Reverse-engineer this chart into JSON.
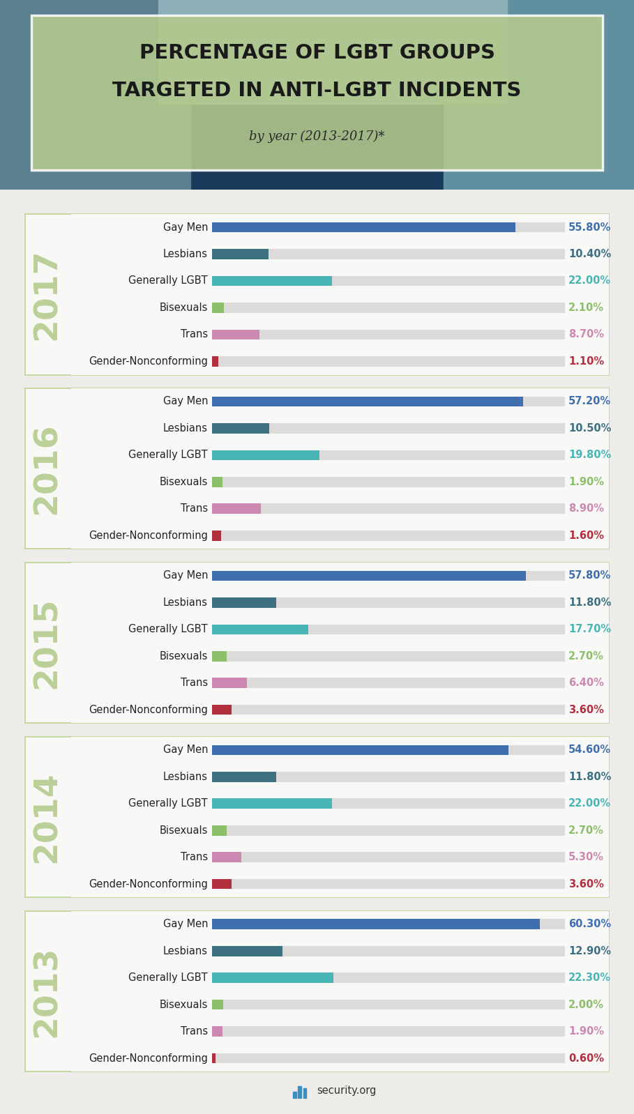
{
  "title_line1": "PERCENTAGE OF LGBT GROUPS",
  "title_line2": "TARGETED IN ANTI-LGBT INCIDENTS",
  "subtitle": "by year (2013-2017)*",
  "background_color": "#eeece8",
  "photo_bg_color": "#7a9db0",
  "header_box_color": "#b5ca8c",
  "years": [
    "2017",
    "2016",
    "2015",
    "2014",
    "2013"
  ],
  "categories": [
    "Gay Men",
    "Lesbians",
    "Generally LGBT",
    "Bisexuals",
    "Trans",
    "Gender-Nonconforming"
  ],
  "bar_colors": [
    "#3f6faf",
    "#3d7080",
    "#49b5b5",
    "#8bbf6a",
    "#cc88b0",
    "#b03040"
  ],
  "value_colors": [
    "#3f6faf",
    "#3d7080",
    "#49b5b5",
    "#8bbf6a",
    "#cc88b0",
    "#b03040"
  ],
  "data": {
    "2017": [
      55.8,
      10.4,
      22.0,
      2.1,
      8.7,
      1.1
    ],
    "2016": [
      57.2,
      10.5,
      19.8,
      1.9,
      8.9,
      1.6
    ],
    "2015": [
      57.8,
      11.8,
      17.7,
      2.7,
      6.4,
      3.6
    ],
    "2014": [
      54.6,
      11.8,
      22.0,
      2.7,
      5.3,
      3.6
    ],
    "2013": [
      60.3,
      12.9,
      22.3,
      2.0,
      1.9,
      0.6
    ]
  },
  "max_bar_value": 65,
  "bar_bg_color": "#dddada",
  "panel_bg_color": "#f8f8f6",
  "panel_border_color": "#c5d8a0",
  "strip_color": "#c5d8a0",
  "strip_text_color": "#b0c888",
  "footer_text": "security.org",
  "cat_fontsize": 10.5,
  "val_fontsize": 10.5,
  "year_fontsize": 34,
  "bar_height": 0.38,
  "title_fontsize": 21,
  "subtitle_fontsize": 13
}
